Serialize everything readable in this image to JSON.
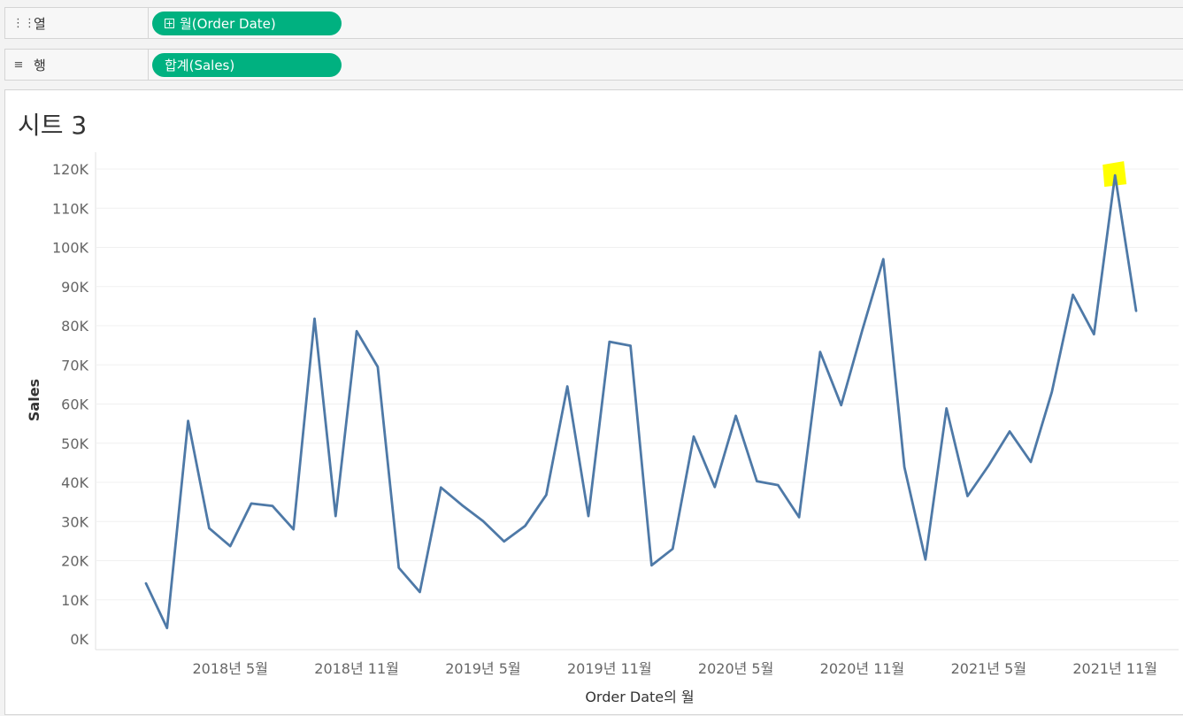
{
  "columns_shelf": {
    "icon": "columns-icon",
    "label": "열",
    "pill_icon": "plus-box-icon",
    "pill_label": "월(Order Date)"
  },
  "rows_shelf": {
    "icon": "rows-icon",
    "label": "행",
    "pill_label": "합계(Sales)"
  },
  "sheet": {
    "title": "시트 3"
  },
  "colors": {
    "line": "#4e79a7",
    "pill": "#00b180",
    "highlight": "#ffff00",
    "grid": "#f0f0f0"
  },
  "chart_data": {
    "type": "line",
    "xlabel": "Order Date의 월",
    "ylabel": "Sales",
    "ylim": [
      0,
      120000
    ],
    "y_ticks": [
      "0K",
      "10K",
      "20K",
      "30K",
      "40K",
      "50K",
      "60K",
      "70K",
      "80K",
      "90K",
      "100K",
      "110K",
      "120K"
    ],
    "x_tick_labels": [
      {
        "label": "2018년 5월",
        "x": "2018-05"
      },
      {
        "label": "2018년 11월",
        "x": "2018-11"
      },
      {
        "label": "2019년 5월",
        "x": "2019-05"
      },
      {
        "label": "2019년 11월",
        "x": "2019-11"
      },
      {
        "label": "2020년 5월",
        "x": "2020-05"
      },
      {
        "label": "2020년 11월",
        "x": "2020-11"
      },
      {
        "label": "2021년 5월",
        "x": "2021-05"
      },
      {
        "label": "2021년 11월",
        "x": "2021-11"
      }
    ],
    "x": [
      "2018-01",
      "2018-02",
      "2018-03",
      "2018-04",
      "2018-05",
      "2018-06",
      "2018-07",
      "2018-08",
      "2018-09",
      "2018-10",
      "2018-11",
      "2018-12",
      "2019-01",
      "2019-02",
      "2019-03",
      "2019-04",
      "2019-05",
      "2019-06",
      "2019-07",
      "2019-08",
      "2019-09",
      "2019-10",
      "2019-11",
      "2019-12",
      "2020-01",
      "2020-02",
      "2020-03",
      "2020-04",
      "2020-05",
      "2020-06",
      "2020-07",
      "2020-08",
      "2020-09",
      "2020-10",
      "2020-11",
      "2020-12",
      "2021-01",
      "2021-02",
      "2021-03",
      "2021-04",
      "2021-05",
      "2021-06",
      "2021-07",
      "2021-08",
      "2021-09",
      "2021-10",
      "2021-11",
      "2021-12"
    ],
    "series": [
      {
        "values": [
          14200,
          2800,
          55700,
          28300,
          23700,
          34600,
          34000,
          28000,
          81800,
          31400,
          78600,
          69500,
          18200,
          12000,
          38700,
          34200,
          30100,
          24900,
          28900,
          36800,
          64500,
          31400,
          75900,
          74900,
          18800,
          23000,
          51700,
          38800,
          57000,
          40300,
          39300,
          31100,
          73300,
          59700,
          78800,
          97000,
          43900,
          20300,
          58900,
          36500,
          44300,
          53000,
          45200,
          63100,
          87900,
          77800,
          118400,
          83800
        ]
      }
    ],
    "highlight_index": 46
  }
}
